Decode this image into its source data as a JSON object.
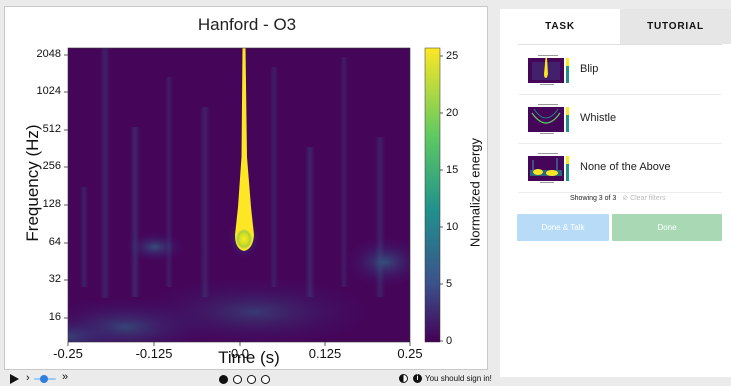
{
  "subject": {
    "title": "Hanford - O3",
    "ylabel": "Frequency (Hz)",
    "xlabel": "Time (s)",
    "colorbar_label": "Normalized energy",
    "y_ticks": [
      "2048",
      "1024",
      "512",
      "256",
      "128",
      "64",
      "32",
      "16"
    ],
    "x_ticks": [
      "-0.25",
      "-0.125",
      "0.0",
      "0.125",
      "0.25"
    ],
    "colorbar_ticks": [
      "25",
      "20",
      "15",
      "10",
      "5",
      "0"
    ],
    "colors": {
      "low": "#440154",
      "mid": "#21918c",
      "high": "#fde725"
    }
  },
  "controls": {
    "play_icon": "play-icon",
    "chevron": "›",
    "fast_forward": "»",
    "frames": 4,
    "active_frame": 1,
    "sign_in_text": "You should sign in!"
  },
  "tabs": {
    "task": "TASK",
    "tutorial": "TUTORIAL"
  },
  "choices": [
    {
      "label": "Blip"
    },
    {
      "label": "Whistle"
    },
    {
      "label": "None of the Above"
    }
  ],
  "filter_status": {
    "showing": "Showing 3 of 3",
    "clear": "⊘ Clear filters"
  },
  "buttons": {
    "done_talk": "Done & Talk",
    "done": "Done"
  }
}
